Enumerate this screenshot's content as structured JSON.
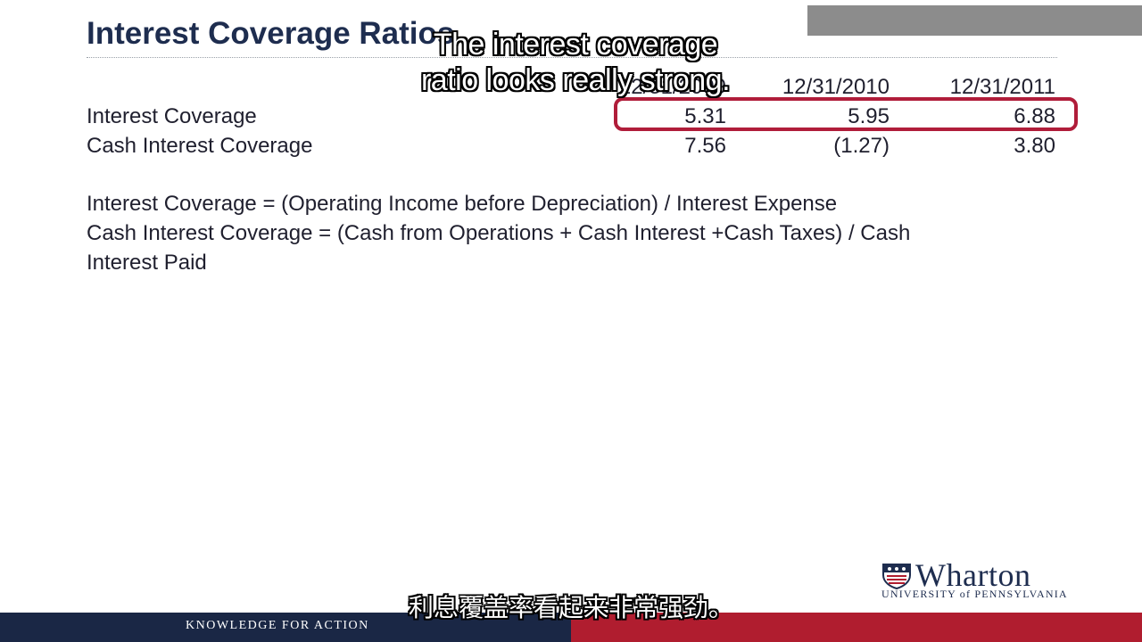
{
  "slide": {
    "title": "Interest Coverage Ratios",
    "table": {
      "headers": [
        "12/31/2009",
        "12/31/2010",
        "12/31/2011"
      ],
      "rows": [
        {
          "label": "Interest Coverage",
          "values": [
            "5.31",
            "5.95",
            "6.88"
          ]
        },
        {
          "label": "Cash Interest Coverage",
          "values": [
            "7.56",
            "(1.27)",
            "3.80"
          ]
        }
      ]
    },
    "formulas": [
      "Interest Coverage = (Operating Income before Depreciation) / Interest Expense",
      "Cash Interest Coverage = (Cash from Operations + Cash Interest +Cash Taxes) / Cash",
      "Interest Paid"
    ]
  },
  "captions": {
    "english_line1": "The interest coverage",
    "english_line2": "ratio looks really strong.",
    "chinese": "利息覆盖率看起来非常强劲。"
  },
  "branding": {
    "logo_word": "Wharton",
    "logo_sub": "UNIVERSITY of PENNSYLVANIA",
    "footer_tagline": "KNOWLEDGE FOR ACTION"
  },
  "colors": {
    "navy": "#1a2745",
    "accent_red": "#b01d2f",
    "highlight": "#b01d3a"
  },
  "icons": {
    "logo_shield": "penn-shield-icon"
  }
}
